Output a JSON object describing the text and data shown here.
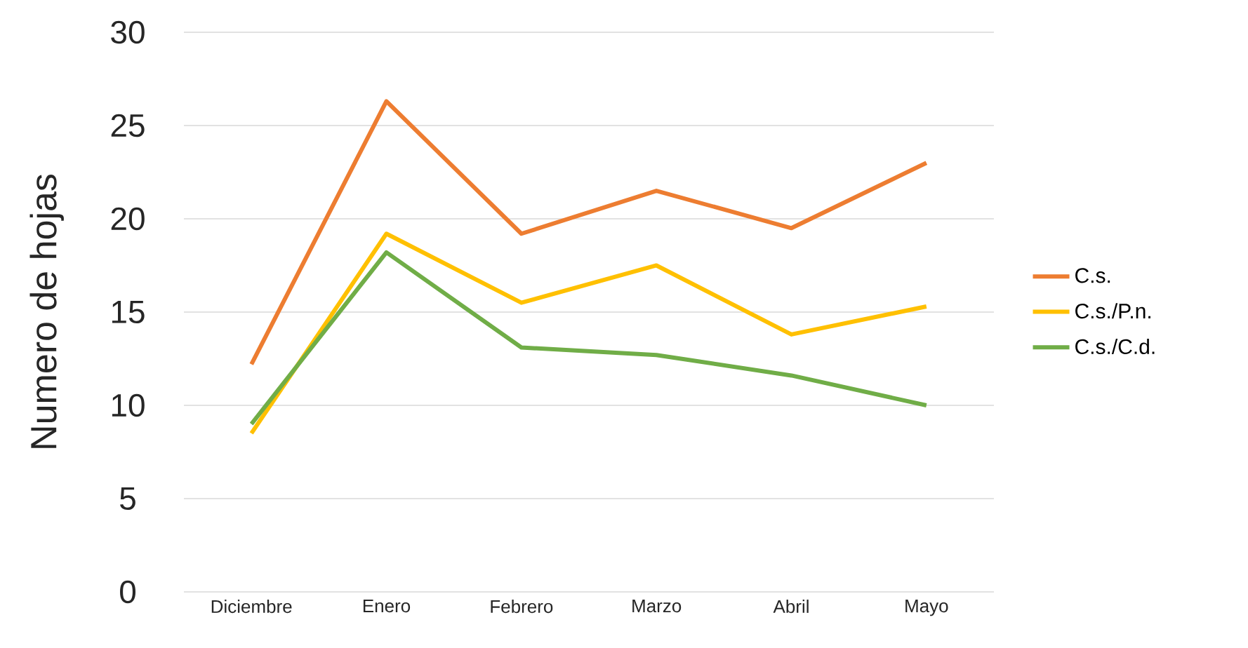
{
  "chart_data": {
    "type": "line",
    "ylabel": "Numero de hojas",
    "categories": [
      "Diciembre",
      "Enero",
      "Febrero",
      "Marzo",
      "Abril",
      "Mayo"
    ],
    "ylim": [
      0,
      30
    ],
    "yticks": [
      0,
      5,
      10,
      15,
      20,
      25,
      30
    ],
    "grid": "y",
    "legend": "right",
    "line_style": "solid",
    "marker": "none",
    "series": [
      {
        "name": "C.s.",
        "color": "#ed7d31",
        "values": [
          12.2,
          26.3,
          19.2,
          21.5,
          19.5,
          23.0
        ]
      },
      {
        "name": "C.s./P.n.",
        "color": "#ffc000",
        "values": [
          8.5,
          19.2,
          15.5,
          17.5,
          13.8,
          15.3
        ]
      },
      {
        "name": "C.s./C.d.",
        "color": "#70ad47",
        "values": [
          9.0,
          18.2,
          13.1,
          12.7,
          11.6,
          10.0
        ]
      }
    ]
  }
}
